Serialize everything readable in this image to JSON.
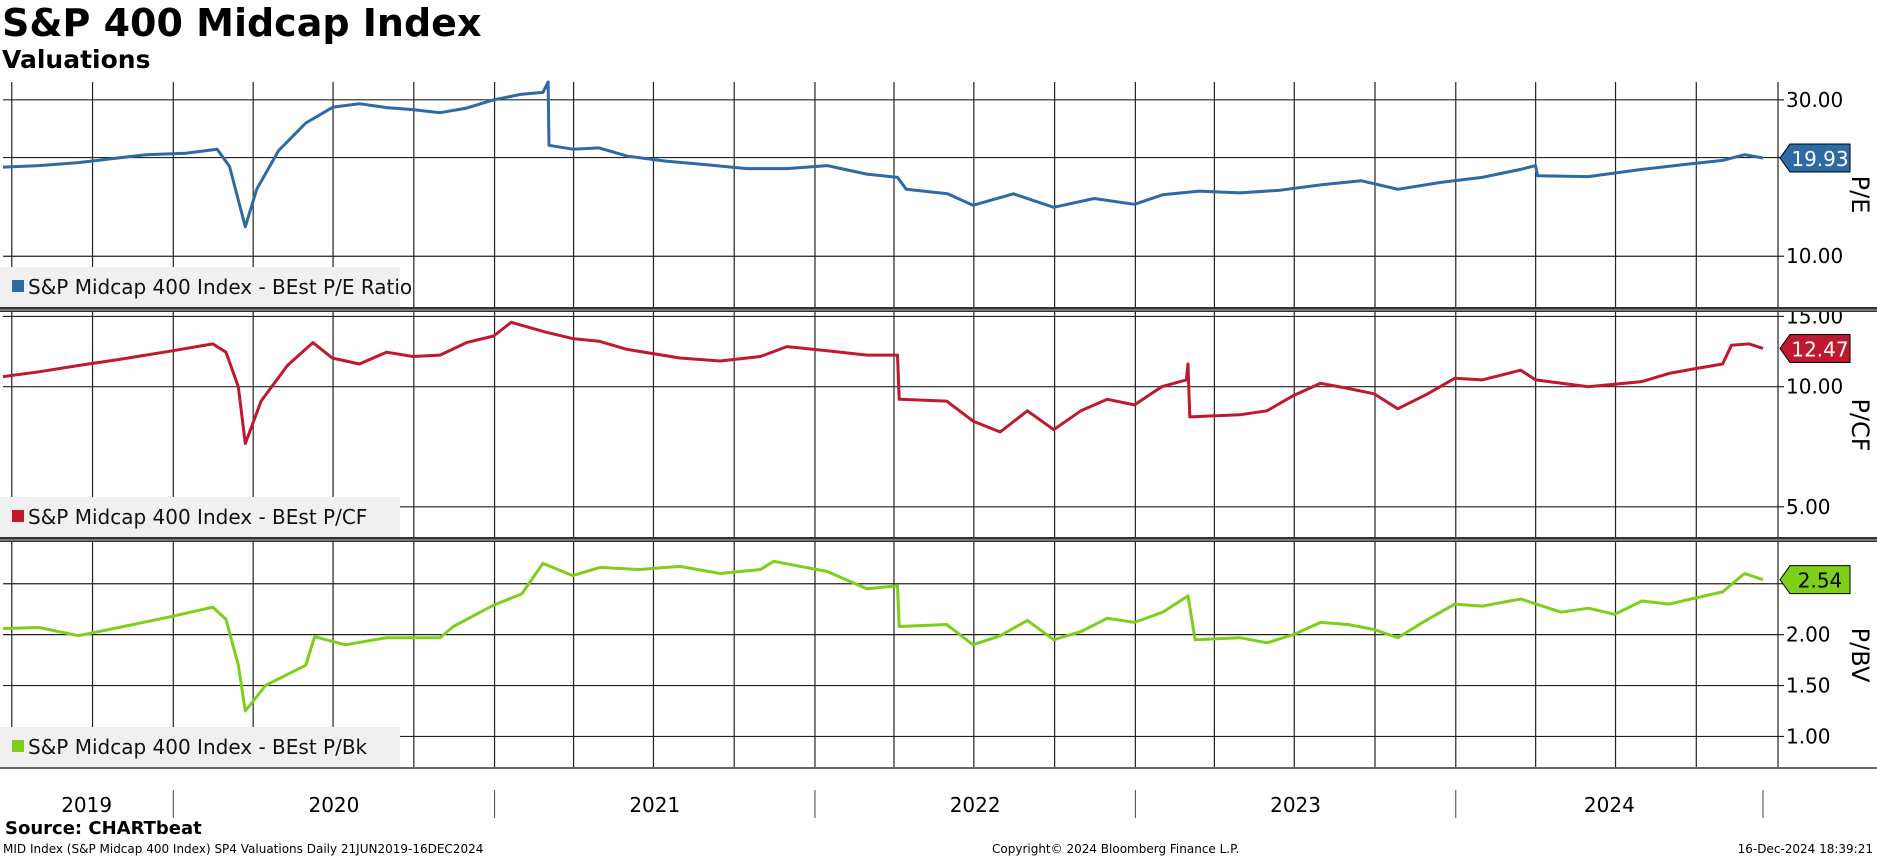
{
  "title": "S&P 400 Midcap Index",
  "subtitle": "Valuations",
  "footer": {
    "source": "Source: CHARTbeat",
    "description": "MID Index (S&P Midcap 400 Index) SP4 Valuations  Daily 21JUN2019-16DEC2024",
    "copyright": "Copyright© 2024 Bloomberg Finance L.P.",
    "timestamp": "16-Dec-2024 18:39:21"
  },
  "chart_data": [
    {
      "type": "line",
      "axis_label": "P/E",
      "legend": "S&P Midcap 400 Index - BEst P/E Ratio",
      "color": "#2d6aa6",
      "last_value": 19.93,
      "last_label": "19.93",
      "y_ticks": [
        30,
        20,
        10
      ],
      "y_tick_labels": [
        "30.00",
        "",
        "10.00"
      ],
      "ylim": [
        7,
        34
      ],
      "legend_placement": "bottom-left",
      "grid": true,
      "series": [
        {
          "x": "2019-06-21",
          "y": 18.7
        },
        {
          "x": "2019-08-01",
          "y": 18.9
        },
        {
          "x": "2019-09-15",
          "y": 19.3
        },
        {
          "x": "2019-10-20",
          "y": 19.8
        },
        {
          "x": "2019-12-01",
          "y": 20.4
        },
        {
          "x": "2020-01-15",
          "y": 20.6
        },
        {
          "x": "2020-02-20",
          "y": 21.2
        },
        {
          "x": "2020-03-05",
          "y": 18.8
        },
        {
          "x": "2020-03-23",
          "y": 12.3
        },
        {
          "x": "2020-04-05",
          "y": 16.0
        },
        {
          "x": "2020-04-30",
          "y": 21.0
        },
        {
          "x": "2020-05-31",
          "y": 25.5
        },
        {
          "x": "2020-07-01",
          "y": 28.5
        },
        {
          "x": "2020-07-31",
          "y": 29.2
        },
        {
          "x": "2020-08-31",
          "y": 28.4
        },
        {
          "x": "2020-09-30",
          "y": 28.0
        },
        {
          "x": "2020-10-31",
          "y": 27.4
        },
        {
          "x": "2020-11-30",
          "y": 28.3
        },
        {
          "x": "2020-12-31",
          "y": 30.0
        },
        {
          "x": "2021-02-01",
          "y": 31.2
        },
        {
          "x": "2021-02-25",
          "y": 31.6
        },
        {
          "x": "2021-03-03",
          "y": 34.0
        },
        {
          "x": "2021-03-04",
          "y": 21.8
        },
        {
          "x": "2021-03-31",
          "y": 21.2
        },
        {
          "x": "2021-04-30",
          "y": 21.4
        },
        {
          "x": "2021-06-01",
          "y": 20.2
        },
        {
          "x": "2021-07-15",
          "y": 19.5
        },
        {
          "x": "2021-08-31",
          "y": 19.0
        },
        {
          "x": "2021-10-15",
          "y": 18.5
        },
        {
          "x": "2021-11-30",
          "y": 18.5
        },
        {
          "x": "2022-01-15",
          "y": 18.9
        },
        {
          "x": "2022-03-01",
          "y": 17.8
        },
        {
          "x": "2022-04-05",
          "y": 17.4
        },
        {
          "x": "2022-04-15",
          "y": 16.0
        },
        {
          "x": "2022-06-01",
          "y": 15.5
        },
        {
          "x": "2022-06-30",
          "y": 14.3
        },
        {
          "x": "2022-08-15",
          "y": 15.5
        },
        {
          "x": "2022-09-30",
          "y": 14.1
        },
        {
          "x": "2022-11-15",
          "y": 15.0
        },
        {
          "x": "2022-12-31",
          "y": 14.4
        },
        {
          "x": "2023-02-01",
          "y": 15.4
        },
        {
          "x": "2023-03-15",
          "y": 15.8
        },
        {
          "x": "2023-04-30",
          "y": 15.6
        },
        {
          "x": "2023-06-15",
          "y": 15.9
        },
        {
          "x": "2023-07-31",
          "y": 16.5
        },
        {
          "x": "2023-09-15",
          "y": 17.0
        },
        {
          "x": "2023-10-27",
          "y": 16.0
        },
        {
          "x": "2023-12-15",
          "y": 16.8
        },
        {
          "x": "2024-01-31",
          "y": 17.4
        },
        {
          "x": "2024-03-15",
          "y": 18.4
        },
        {
          "x": "2024-04-01",
          "y": 18.9
        },
        {
          "x": "2024-04-03",
          "y": 17.6
        },
        {
          "x": "2024-05-31",
          "y": 17.5
        },
        {
          "x": "2024-07-31",
          "y": 18.4
        },
        {
          "x": "2024-09-15",
          "y": 19.0
        },
        {
          "x": "2024-10-31",
          "y": 19.6
        },
        {
          "x": "2024-11-25",
          "y": 20.4
        },
        {
          "x": "2024-12-16",
          "y": 19.93
        }
      ]
    },
    {
      "type": "line",
      "axis_label": "P/CF",
      "legend": "S&P Midcap 400 Index - BEst P/CF",
      "color": "#c0182f",
      "last_value": 12.47,
      "last_label": "12.47",
      "y_ticks": [
        15,
        10,
        5
      ],
      "y_tick_labels": [
        "15.00",
        "10.00",
        "5.00"
      ],
      "ylim": [
        4.2,
        15.3
      ],
      "legend_placement": "bottom-left",
      "grid": true,
      "series": [
        {
          "x": "2019-06-21",
          "y": 10.6
        },
        {
          "x": "2019-08-01",
          "y": 10.9
        },
        {
          "x": "2019-09-15",
          "y": 11.3
        },
        {
          "x": "2019-10-31",
          "y": 11.7
        },
        {
          "x": "2019-12-31",
          "y": 12.3
        },
        {
          "x": "2020-02-15",
          "y": 12.8
        },
        {
          "x": "2020-03-01",
          "y": 12.2
        },
        {
          "x": "2020-03-15",
          "y": 10.0
        },
        {
          "x": "2020-03-23",
          "y": 7.2
        },
        {
          "x": "2020-04-10",
          "y": 9.2
        },
        {
          "x": "2020-05-10",
          "y": 11.3
        },
        {
          "x": "2020-06-08",
          "y": 12.9
        },
        {
          "x": "2020-06-30",
          "y": 11.8
        },
        {
          "x": "2020-07-31",
          "y": 11.4
        },
        {
          "x": "2020-08-31",
          "y": 12.2
        },
        {
          "x": "2020-09-30",
          "y": 11.9
        },
        {
          "x": "2020-10-31",
          "y": 12.0
        },
        {
          "x": "2020-11-30",
          "y": 12.9
        },
        {
          "x": "2020-12-31",
          "y": 13.4
        },
        {
          "x": "2021-01-20",
          "y": 14.5
        },
        {
          "x": "2021-02-28",
          "y": 13.7
        },
        {
          "x": "2021-03-31",
          "y": 13.2
        },
        {
          "x": "2021-04-30",
          "y": 13.0
        },
        {
          "x": "2021-06-01",
          "y": 12.4
        },
        {
          "x": "2021-07-31",
          "y": 11.8
        },
        {
          "x": "2021-09-15",
          "y": 11.6
        },
        {
          "x": "2021-10-31",
          "y": 11.9
        },
        {
          "x": "2021-11-30",
          "y": 12.6
        },
        {
          "x": "2022-01-15",
          "y": 12.3
        },
        {
          "x": "2022-03-01",
          "y": 12.0
        },
        {
          "x": "2022-04-05",
          "y": 12.0
        },
        {
          "x": "2022-04-07",
          "y": 9.3
        },
        {
          "x": "2022-05-31",
          "y": 9.2
        },
        {
          "x": "2022-06-30",
          "y": 8.2
        },
        {
          "x": "2022-07-31",
          "y": 7.7
        },
        {
          "x": "2022-08-31",
          "y": 8.7
        },
        {
          "x": "2022-09-30",
          "y": 7.8
        },
        {
          "x": "2022-10-31",
          "y": 8.7
        },
        {
          "x": "2022-11-30",
          "y": 9.3
        },
        {
          "x": "2022-12-31",
          "y": 9.0
        },
        {
          "x": "2023-01-31",
          "y": 10.0
        },
        {
          "x": "2023-02-28",
          "y": 10.4
        },
        {
          "x": "2023-03-02",
          "y": 11.4
        },
        {
          "x": "2023-03-04",
          "y": 8.4
        },
        {
          "x": "2023-04-30",
          "y": 8.5
        },
        {
          "x": "2023-05-31",
          "y": 8.7
        },
        {
          "x": "2023-06-30",
          "y": 9.5
        },
        {
          "x": "2023-07-31",
          "y": 10.2
        },
        {
          "x": "2023-08-31",
          "y": 9.9
        },
        {
          "x": "2023-09-30",
          "y": 9.6
        },
        {
          "x": "2023-10-27",
          "y": 8.8
        },
        {
          "x": "2023-11-30",
          "y": 9.6
        },
        {
          "x": "2023-12-31",
          "y": 10.5
        },
        {
          "x": "2024-01-31",
          "y": 10.4
        },
        {
          "x": "2024-03-15",
          "y": 11.0
        },
        {
          "x": "2024-04-01",
          "y": 10.4
        },
        {
          "x": "2024-05-31",
          "y": 10.0
        },
        {
          "x": "2024-07-31",
          "y": 10.3
        },
        {
          "x": "2024-08-31",
          "y": 10.8
        },
        {
          "x": "2024-09-30",
          "y": 11.1
        },
        {
          "x": "2024-10-31",
          "y": 11.4
        },
        {
          "x": "2024-11-10",
          "y": 12.7
        },
        {
          "x": "2024-11-30",
          "y": 12.8
        },
        {
          "x": "2024-12-16",
          "y": 12.47
        }
      ]
    },
    {
      "type": "line",
      "axis_label": "P/BV",
      "legend": "S&P Midcap 400 Index - BEst P/Bk",
      "color": "#7fcf1a",
      "last_value": 2.54,
      "last_label": "2.54",
      "y_ticks": [
        2.5,
        2.0,
        1.5,
        1.0
      ],
      "y_tick_labels": [
        "",
        "2.00",
        "1.50",
        "1.00"
      ],
      "ylim": [
        0.7,
        2.9
      ],
      "legend_placement": "bottom-left",
      "grid": true,
      "series": [
        {
          "x": "2019-06-21",
          "y": 2.06
        },
        {
          "x": "2019-08-01",
          "y": 2.07
        },
        {
          "x": "2019-09-15",
          "y": 1.99
        },
        {
          "x": "2019-10-31",
          "y": 2.07
        },
        {
          "x": "2019-12-31",
          "y": 2.18
        },
        {
          "x": "2020-02-15",
          "y": 2.27
        },
        {
          "x": "2020-03-01",
          "y": 2.15
        },
        {
          "x": "2020-03-15",
          "y": 1.7
        },
        {
          "x": "2020-03-23",
          "y": 1.25
        },
        {
          "x": "2020-04-15",
          "y": 1.5
        },
        {
          "x": "2020-05-31",
          "y": 1.7
        },
        {
          "x": "2020-06-10",
          "y": 1.98
        },
        {
          "x": "2020-07-15",
          "y": 1.9
        },
        {
          "x": "2020-08-31",
          "y": 1.97
        },
        {
          "x": "2020-10-31",
          "y": 1.97
        },
        {
          "x": "2020-11-15",
          "y": 2.08
        },
        {
          "x": "2020-12-31",
          "y": 2.29
        },
        {
          "x": "2021-02-01",
          "y": 2.4
        },
        {
          "x": "2021-02-25",
          "y": 2.7
        },
        {
          "x": "2021-03-31",
          "y": 2.58
        },
        {
          "x": "2021-05-01",
          "y": 2.66
        },
        {
          "x": "2021-06-15",
          "y": 2.64
        },
        {
          "x": "2021-07-31",
          "y": 2.67
        },
        {
          "x": "2021-09-15",
          "y": 2.6
        },
        {
          "x": "2021-10-31",
          "y": 2.64
        },
        {
          "x": "2021-11-15",
          "y": 2.72
        },
        {
          "x": "2022-01-15",
          "y": 2.62
        },
        {
          "x": "2022-03-01",
          "y": 2.45
        },
        {
          "x": "2022-04-05",
          "y": 2.48
        },
        {
          "x": "2022-04-07",
          "y": 2.08
        },
        {
          "x": "2022-05-31",
          "y": 2.1
        },
        {
          "x": "2022-06-30",
          "y": 1.9
        },
        {
          "x": "2022-07-31",
          "y": 1.99
        },
        {
          "x": "2022-08-31",
          "y": 2.14
        },
        {
          "x": "2022-09-30",
          "y": 1.95
        },
        {
          "x": "2022-10-31",
          "y": 2.03
        },
        {
          "x": "2022-11-30",
          "y": 2.16
        },
        {
          "x": "2022-12-31",
          "y": 2.12
        },
        {
          "x": "2023-02-01",
          "y": 2.22
        },
        {
          "x": "2023-03-02",
          "y": 2.38
        },
        {
          "x": "2023-03-10",
          "y": 1.95
        },
        {
          "x": "2023-04-30",
          "y": 1.97
        },
        {
          "x": "2023-05-31",
          "y": 1.92
        },
        {
          "x": "2023-06-30",
          "y": 2.0
        },
        {
          "x": "2023-07-31",
          "y": 2.12
        },
        {
          "x": "2023-08-31",
          "y": 2.1
        },
        {
          "x": "2023-09-30",
          "y": 2.05
        },
        {
          "x": "2023-10-27",
          "y": 1.97
        },
        {
          "x": "2023-11-30",
          "y": 2.15
        },
        {
          "x": "2023-12-31",
          "y": 2.3
        },
        {
          "x": "2024-01-31",
          "y": 2.28
        },
        {
          "x": "2024-03-15",
          "y": 2.35
        },
        {
          "x": "2024-04-30",
          "y": 2.22
        },
        {
          "x": "2024-05-31",
          "y": 2.26
        },
        {
          "x": "2024-06-30",
          "y": 2.2
        },
        {
          "x": "2024-07-31",
          "y": 2.33
        },
        {
          "x": "2024-08-31",
          "y": 2.3
        },
        {
          "x": "2024-09-30",
          "y": 2.36
        },
        {
          "x": "2024-10-31",
          "y": 2.42
        },
        {
          "x": "2024-11-25",
          "y": 2.6
        },
        {
          "x": "2024-12-16",
          "y": 2.54
        }
      ]
    }
  ],
  "x_axis": {
    "year_labels": [
      "2019",
      "2020",
      "2021",
      "2022",
      "2023",
      "2024"
    ],
    "start": "2019-06-21",
    "end": "2024-12-16"
  }
}
